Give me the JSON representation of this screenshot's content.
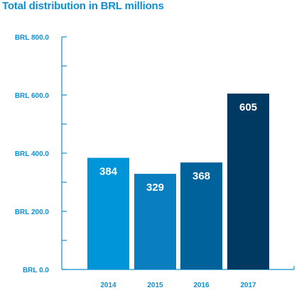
{
  "colors": {
    "title": "#0f8fd3",
    "axis": "#0f8fd3",
    "axis_text": "#0f8fd3",
    "data_label": "#ffffff"
  },
  "chart_data": {
    "type": "bar",
    "title": "Total distribution in BRL millions",
    "categories": [
      "2014",
      "2015",
      "2016",
      "2017"
    ],
    "values": [
      384,
      329,
      368,
      605
    ],
    "data_labels": [
      "384",
      "329",
      "368",
      "605"
    ],
    "bar_colors": [
      "#0095d9",
      "#0a7fbf",
      "#00629a",
      "#003a63"
    ],
    "y_ticks": [
      0,
      200,
      400,
      600,
      800
    ],
    "y_tick_labels": [
      "BRL 0.0",
      "BRL 200.0",
      "BRL 400.0",
      "BRL 600.0",
      "BRL 800.0"
    ],
    "ylim": [
      0,
      800
    ],
    "xlabel": "",
    "ylabel": "",
    "grid": false,
    "legend": "none"
  }
}
